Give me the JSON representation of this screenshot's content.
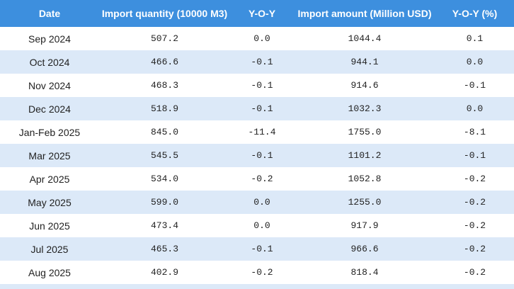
{
  "table": {
    "headers": [
      "Date",
      "Import quantity (10000 M3)",
      "Y-O-Y",
      "Import amount (Million USD)",
      "Y-O-Y (%)"
    ],
    "rows": [
      [
        "Sep 2024",
        "507.2",
        "0.0",
        "1044.4",
        "0.1"
      ],
      [
        "Oct 2024",
        "466.6",
        "-0.1",
        "944.1",
        "0.0"
      ],
      [
        "Nov 2024",
        "468.3",
        "-0.1",
        "914.6",
        "-0.1"
      ],
      [
        "Dec 2024",
        "518.9",
        "-0.1",
        "1032.3",
        "0.0"
      ],
      [
        "Jan-Feb 2025",
        "845.0",
        "-11.4",
        "1755.0",
        "-8.1"
      ],
      [
        "Mar 2025",
        "545.5",
        "-0.1",
        "1101.2",
        "-0.1"
      ],
      [
        "Apr 2025",
        "534.0",
        "-0.2",
        "1052.8",
        "-0.2"
      ],
      [
        "May 2025",
        "599.0",
        "0.0",
        "1255.0",
        "-0.2"
      ],
      [
        "Jun 2025",
        "473.4",
        "0.0",
        "917.9",
        "-0.2"
      ],
      [
        "Jul 2025",
        "465.3",
        "-0.1",
        "966.6",
        "-0.2"
      ],
      [
        "Aug 2025",
        "402.9",
        "-0.2",
        "818.4",
        "-0.2"
      ]
    ]
  }
}
